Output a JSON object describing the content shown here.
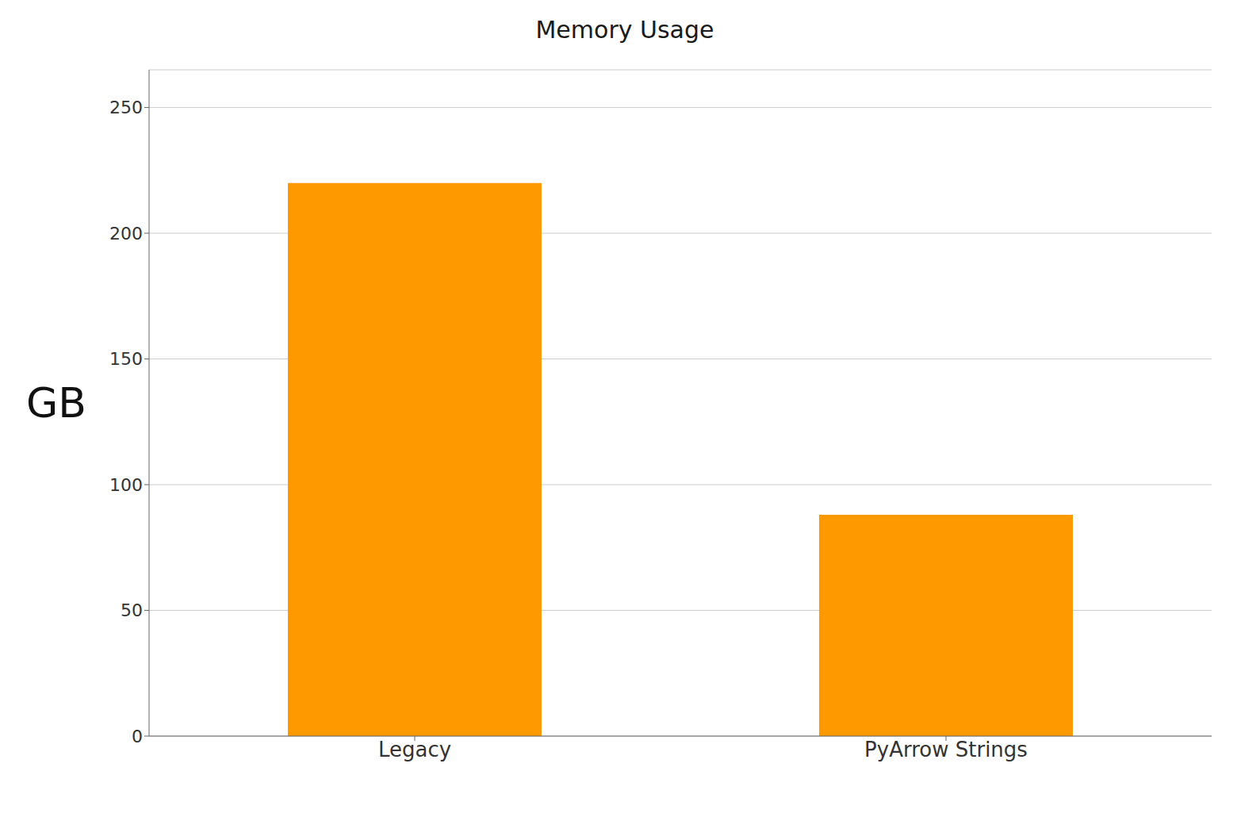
{
  "chart_data": {
    "type": "bar",
    "title": "Memory Usage",
    "categories": [
      "Legacy",
      "PyArrow Strings"
    ],
    "values": [
      220,
      88
    ],
    "color": "#FF9900",
    "ylabel": "GB",
    "ylim": [
      0,
      265
    ],
    "yticks": [
      0,
      50,
      100,
      150,
      200,
      250
    ],
    "grid": true
  }
}
